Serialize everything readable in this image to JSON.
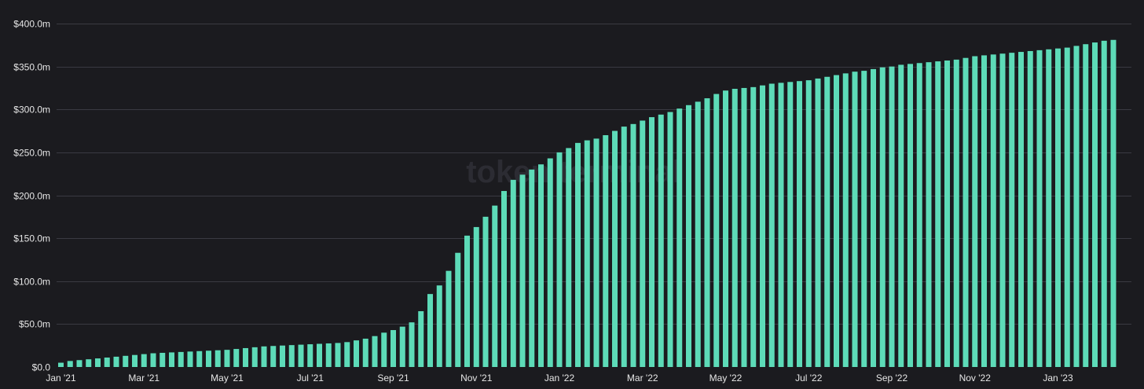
{
  "chart_data": {
    "type": "bar",
    "title": "",
    "xlabel": "",
    "ylabel": "",
    "watermark": "token terminal",
    "grid": true,
    "legend": "none",
    "bar_color": "#5ddbb8",
    "background_color": "#1b1b1f",
    "grid_color": "#3a3a42",
    "text_color": "#e6e6e6",
    "ylim": [
      0,
      400
    ],
    "y_ticks": [
      0,
      50,
      100,
      150,
      200,
      250,
      300,
      350,
      400
    ],
    "y_tick_labels": [
      "$0.0",
      "$50.0m",
      "$100.0m",
      "$150.0m",
      "$200.0m",
      "$250.0m",
      "$300.0m",
      "$350.0m",
      "$400.0m"
    ],
    "x_tick_labels": [
      {
        "label": "Jan '21",
        "index": 0
      },
      {
        "label": "Mar '21",
        "index": 9
      },
      {
        "label": "May '21",
        "index": 18
      },
      {
        "label": "Jul '21",
        "index": 27
      },
      {
        "label": "Sep '21",
        "index": 36
      },
      {
        "label": "Nov '21",
        "index": 45
      },
      {
        "label": "Jan '22",
        "index": 54
      },
      {
        "label": "Mar '22",
        "index": 63
      },
      {
        "label": "May '22",
        "index": 72
      },
      {
        "label": "Jul '22",
        "index": 81
      },
      {
        "label": "Sep '22",
        "index": 90
      },
      {
        "label": "Nov '22",
        "index": 99
      },
      {
        "label": "Jan '23",
        "index": 108
      }
    ],
    "values": [
      5,
      7,
      8,
      9,
      10,
      11,
      12,
      13,
      14,
      15,
      16,
      16.5,
      17,
      17.5,
      18,
      18.5,
      19,
      19.5,
      20,
      21,
      22,
      23,
      24,
      24.5,
      25,
      25.5,
      26,
      26.5,
      27,
      27.5,
      28,
      29,
      31,
      33,
      36,
      40,
      43,
      47,
      52,
      65,
      85,
      95,
      112,
      133,
      153,
      163,
      175,
      188,
      205,
      218,
      224,
      230,
      236,
      243,
      250,
      255,
      261,
      264,
      266,
      270,
      275,
      280,
      283,
      287,
      291,
      294,
      297,
      301,
      305,
      309,
      313,
      318,
      322,
      324,
      325,
      326,
      328,
      330,
      331,
      332,
      333,
      334,
      336,
      338,
      340,
      342,
      344,
      345,
      347,
      349,
      350,
      352,
      353,
      354,
      355,
      356,
      357,
      358,
      360,
      362,
      363,
      364,
      365,
      366,
      367,
      368,
      369,
      370,
      371,
      372,
      374,
      376,
      378,
      380,
      381
    ]
  }
}
